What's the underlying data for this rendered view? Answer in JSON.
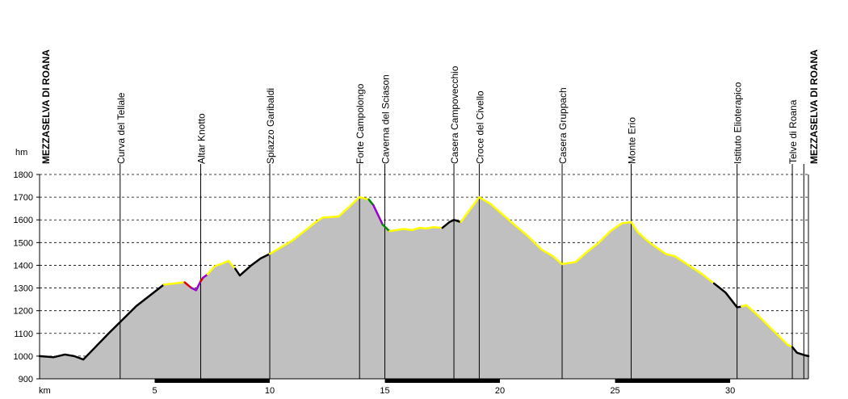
{
  "chart_data": {
    "type": "area",
    "title": "",
    "xlabel": "km",
    "ylabel": "hm",
    "xlim": [
      0,
      33.4
    ],
    "ylim": [
      900,
      1800
    ],
    "x_ticks": [
      5,
      10,
      15,
      20,
      25,
      30
    ],
    "y_ticks": [
      900,
      1000,
      1100,
      1200,
      1300,
      1400,
      1500,
      1600,
      1700,
      1800
    ],
    "grid": "horizontal-dashed",
    "colors": {
      "fill": "#c0c0c0",
      "default_line": "#000000",
      "highlight": "#ffff00",
      "red": "#dd0000",
      "purple": "#9900cc",
      "green": "#008800"
    },
    "waypoints": [
      {
        "name": "MEZZASELVA DI ROANA",
        "km": 0.0,
        "bold": true
      },
      {
        "name": "Curva del Tellale",
        "km": 3.5,
        "bold": false
      },
      {
        "name": "Altar Knotto",
        "km": 7.0,
        "bold": false
      },
      {
        "name": "Spiazzo Garibaldi",
        "km": 10.0,
        "bold": false
      },
      {
        "name": "Forte Campolongo",
        "km": 13.9,
        "bold": false
      },
      {
        "name": "Caverna del Sciason",
        "km": 15.0,
        "bold": false
      },
      {
        "name": "Casera Campovecchio",
        "km": 18.0,
        "bold": false
      },
      {
        "name": "Croce del Civello",
        "km": 19.1,
        "bold": false
      },
      {
        "name": "Casera Gruppach",
        "km": 22.7,
        "bold": false
      },
      {
        "name": "Monte Erio",
        "km": 25.7,
        "bold": false
      },
      {
        "name": "Istituto Elioterapico",
        "km": 30.3,
        "bold": false
      },
      {
        "name": "Telve di Roana",
        "km": 32.7,
        "bold": false
      },
      {
        "name": "MEZZASELVA DI ROANA",
        "km": 33.2,
        "bold": true
      }
    ],
    "km_bars": [
      [
        5,
        10
      ],
      [
        15,
        20
      ],
      [
        25,
        30
      ]
    ],
    "segments": [
      {
        "color": "black",
        "points": [
          [
            0,
            1000
          ],
          [
            0.6,
            995
          ],
          [
            1.1,
            1007
          ],
          [
            1.5,
            1000
          ],
          [
            1.9,
            985
          ],
          [
            3,
            1100
          ],
          [
            4.2,
            1220
          ],
          [
            5.4,
            1315
          ]
        ]
      },
      {
        "color": "yellow",
        "points": [
          [
            5.4,
            1315
          ],
          [
            6.3,
            1325
          ]
        ]
      },
      {
        "color": "red",
        "points": [
          [
            6.3,
            1325
          ],
          [
            6.6,
            1300
          ]
        ]
      },
      {
        "color": "purple",
        "points": [
          [
            6.6,
            1300
          ],
          [
            6.8,
            1290
          ],
          [
            7.0,
            1330
          ]
        ]
      },
      {
        "color": "red",
        "points": [
          [
            7.0,
            1330
          ],
          [
            7.1,
            1345
          ]
        ]
      },
      {
        "color": "purple",
        "points": [
          [
            7.1,
            1345
          ],
          [
            7.3,
            1360
          ]
        ]
      },
      {
        "color": "yellow",
        "points": [
          [
            7.3,
            1360
          ],
          [
            7.6,
            1395
          ],
          [
            8.0,
            1410
          ],
          [
            8.2,
            1420
          ],
          [
            8.5,
            1385
          ]
        ]
      },
      {
        "color": "black",
        "points": [
          [
            8.5,
            1385
          ],
          [
            8.7,
            1355
          ],
          [
            9.2,
            1400
          ],
          [
            9.6,
            1430
          ],
          [
            10,
            1450
          ]
        ]
      },
      {
        "color": "yellow",
        "points": [
          [
            10,
            1450
          ],
          [
            11,
            1510
          ],
          [
            11.5,
            1550
          ],
          [
            12,
            1590
          ],
          [
            12.3,
            1610
          ],
          [
            13,
            1615
          ],
          [
            13.9,
            1700
          ],
          [
            14.3,
            1690
          ]
        ]
      },
      {
        "color": "green",
        "points": [
          [
            14.3,
            1690
          ],
          [
            14.5,
            1665
          ]
        ]
      },
      {
        "color": "purple",
        "points": [
          [
            14.5,
            1665
          ],
          [
            14.9,
            1580
          ]
        ]
      },
      {
        "color": "green",
        "points": [
          [
            14.9,
            1580
          ],
          [
            15.2,
            1550
          ]
        ]
      },
      {
        "color": "yellow",
        "points": [
          [
            15.2,
            1550
          ],
          [
            15.5,
            1555
          ],
          [
            15.8,
            1560
          ],
          [
            16.2,
            1555
          ],
          [
            16.5,
            1565
          ],
          [
            16.8,
            1562
          ],
          [
            17.1,
            1568
          ],
          [
            17.5,
            1565
          ]
        ]
      },
      {
        "color": "black",
        "points": [
          [
            17.5,
            1565
          ],
          [
            17.8,
            1590
          ],
          [
            18.0,
            1600
          ],
          [
            18.3,
            1590
          ]
        ]
      },
      {
        "color": "yellow",
        "points": [
          [
            18.3,
            1590
          ],
          [
            19.1,
            1700
          ],
          [
            19.6,
            1670
          ],
          [
            20.5,
            1590
          ],
          [
            21.2,
            1530
          ],
          [
            21.8,
            1470
          ],
          [
            22.3,
            1440
          ],
          [
            22.7,
            1405
          ],
          [
            23.3,
            1415
          ],
          [
            23.8,
            1460
          ],
          [
            24.3,
            1500
          ],
          [
            24.8,
            1550
          ],
          [
            25.3,
            1585
          ],
          [
            25.7,
            1590
          ],
          [
            26,
            1545
          ],
          [
            26.5,
            1500
          ],
          [
            27.2,
            1450
          ],
          [
            27.6,
            1440
          ],
          [
            28.2,
            1400
          ],
          [
            28.8,
            1360
          ],
          [
            29.3,
            1320
          ]
        ]
      },
      {
        "color": "black",
        "points": [
          [
            29.3,
            1320
          ],
          [
            29.8,
            1280
          ],
          [
            30.3,
            1215
          ],
          [
            30.5,
            1218
          ]
        ]
      },
      {
        "color": "yellow",
        "points": [
          [
            30.5,
            1218
          ],
          [
            30.7,
            1225
          ],
          [
            31.2,
            1180
          ],
          [
            31.7,
            1130
          ],
          [
            32.2,
            1080
          ],
          [
            32.5,
            1050
          ],
          [
            32.7,
            1040
          ]
        ]
      },
      {
        "color": "black",
        "points": [
          [
            32.7,
            1040
          ],
          [
            32.9,
            1015
          ],
          [
            33.2,
            1005
          ],
          [
            33.4,
            1000
          ]
        ]
      }
    ]
  }
}
